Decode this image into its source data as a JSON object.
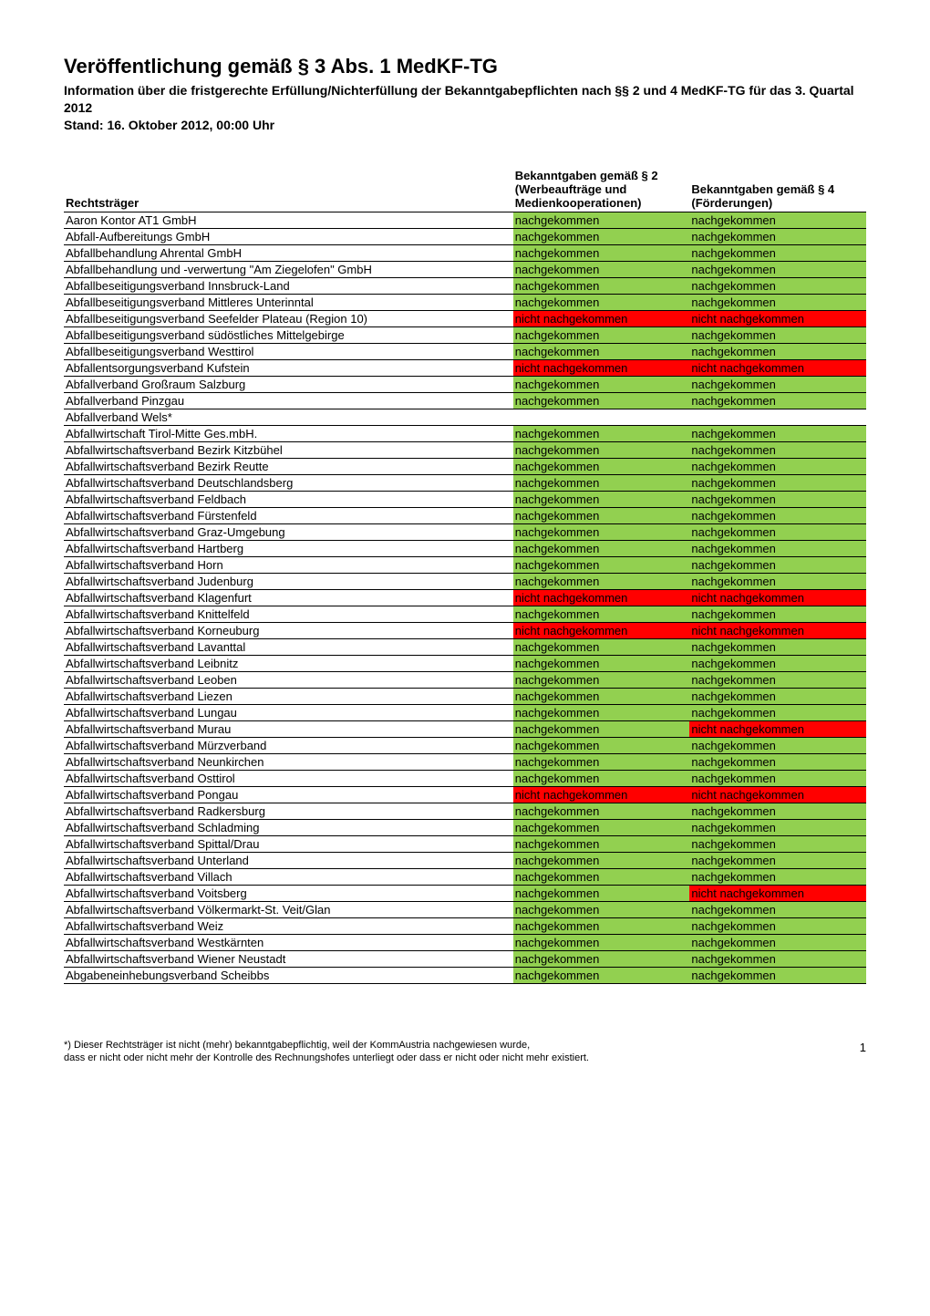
{
  "header": {
    "title": "Veröffentlichung gemäß § 3 Abs. 1 MedKF-TG",
    "subtitle_line1": "Information über die fristgerechte Erfüllung/Nichterfüllung der Bekanntgabepflichten nach §§ 2 und 4 MedKF-TG für das 3. Quartal 2012",
    "subtitle_line2": "Stand: 16. Oktober 2012, 00:00 Uhr"
  },
  "table": {
    "header_row1_col2": "Bekanntgaben gemäß § 2 (Werbeaufträge und Medienkooperationen)",
    "header_row1_col3": "Bekanntgaben gemäß § 4 (Förderungen)",
    "header_col1": "Rechtsträger",
    "status_text": {
      "ok": "nachgekommen",
      "not": "nicht nachgekommen",
      "blank": ""
    },
    "colors": {
      "ok": "#92d050",
      "not": "#ff0000"
    },
    "rows": [
      {
        "name": "Aaron Kontor AT1 GmbH",
        "s2": "ok",
        "s4": "ok"
      },
      {
        "name": "Abfall-Aufbereitungs GmbH",
        "s2": "ok",
        "s4": "ok"
      },
      {
        "name": "Abfallbehandlung Ahrental GmbH",
        "s2": "ok",
        "s4": "ok"
      },
      {
        "name": "Abfallbehandlung und -verwertung \"Am Ziegelofen\" GmbH",
        "s2": "ok",
        "s4": "ok"
      },
      {
        "name": "Abfallbeseitigungsverband Innsbruck-Land",
        "s2": "ok",
        "s4": "ok"
      },
      {
        "name": "Abfallbeseitigungsverband Mittleres Unterinntal",
        "s2": "ok",
        "s4": "ok"
      },
      {
        "name": "Abfallbeseitigungsverband Seefelder Plateau (Region 10)",
        "s2": "not",
        "s4": "not"
      },
      {
        "name": "Abfallbeseitigungsverband südöstliches Mittelgebirge",
        "s2": "ok",
        "s4": "ok"
      },
      {
        "name": "Abfallbeseitigungsverband Westtirol",
        "s2": "ok",
        "s4": "ok"
      },
      {
        "name": "Abfallentsorgungsverband Kufstein",
        "s2": "not",
        "s4": "not"
      },
      {
        "name": "Abfallverband Großraum Salzburg",
        "s2": "ok",
        "s4": "ok"
      },
      {
        "name": "Abfallverband Pinzgau",
        "s2": "ok",
        "s4": "ok"
      },
      {
        "name": "Abfallverband Wels*",
        "s2": "blank",
        "s4": "blank"
      },
      {
        "name": "Abfallwirtschaft Tirol-Mitte Ges.mbH.",
        "s2": "ok",
        "s4": "ok"
      },
      {
        "name": "Abfallwirtschaftsverband Bezirk Kitzbühel",
        "s2": "ok",
        "s4": "ok"
      },
      {
        "name": "Abfallwirtschaftsverband Bezirk Reutte",
        "s2": "ok",
        "s4": "ok"
      },
      {
        "name": "Abfallwirtschaftsverband Deutschlandsberg",
        "s2": "ok",
        "s4": "ok"
      },
      {
        "name": "Abfallwirtschaftsverband Feldbach",
        "s2": "ok",
        "s4": "ok"
      },
      {
        "name": "Abfallwirtschaftsverband Fürstenfeld",
        "s2": "ok",
        "s4": "ok"
      },
      {
        "name": "Abfallwirtschaftsverband Graz-Umgebung",
        "s2": "ok",
        "s4": "ok"
      },
      {
        "name": "Abfallwirtschaftsverband Hartberg",
        "s2": "ok",
        "s4": "ok"
      },
      {
        "name": "Abfallwirtschaftsverband Horn",
        "s2": "ok",
        "s4": "ok"
      },
      {
        "name": "Abfallwirtschaftsverband Judenburg",
        "s2": "ok",
        "s4": "ok"
      },
      {
        "name": "Abfallwirtschaftsverband Klagenfurt",
        "s2": "not",
        "s4": "not"
      },
      {
        "name": "Abfallwirtschaftsverband Knittelfeld",
        "s2": "ok",
        "s4": "ok"
      },
      {
        "name": "Abfallwirtschaftsverband Korneuburg",
        "s2": "not",
        "s4": "not"
      },
      {
        "name": "Abfallwirtschaftsverband Lavanttal",
        "s2": "ok",
        "s4": "ok"
      },
      {
        "name": "Abfallwirtschaftsverband Leibnitz",
        "s2": "ok",
        "s4": "ok"
      },
      {
        "name": "Abfallwirtschaftsverband Leoben",
        "s2": "ok",
        "s4": "ok"
      },
      {
        "name": "Abfallwirtschaftsverband Liezen",
        "s2": "ok",
        "s4": "ok"
      },
      {
        "name": "Abfallwirtschaftsverband Lungau",
        "s2": "ok",
        "s4": "ok"
      },
      {
        "name": "Abfallwirtschaftsverband Murau",
        "s2": "ok",
        "s4": "not"
      },
      {
        "name": "Abfallwirtschaftsverband Mürzverband",
        "s2": "ok",
        "s4": "ok"
      },
      {
        "name": "Abfallwirtschaftsverband Neunkirchen",
        "s2": "ok",
        "s4": "ok"
      },
      {
        "name": "Abfallwirtschaftsverband Osttirol",
        "s2": "ok",
        "s4": "ok"
      },
      {
        "name": "Abfallwirtschaftsverband Pongau",
        "s2": "not",
        "s4": "not"
      },
      {
        "name": "Abfallwirtschaftsverband Radkersburg",
        "s2": "ok",
        "s4": "ok"
      },
      {
        "name": "Abfallwirtschaftsverband Schladming",
        "s2": "ok",
        "s4": "ok"
      },
      {
        "name": "Abfallwirtschaftsverband Spittal/Drau",
        "s2": "ok",
        "s4": "ok"
      },
      {
        "name": "Abfallwirtschaftsverband Unterland",
        "s2": "ok",
        "s4": "ok"
      },
      {
        "name": "Abfallwirtschaftsverband Villach",
        "s2": "ok",
        "s4": "ok"
      },
      {
        "name": "Abfallwirtschaftsverband Voitsberg",
        "s2": "ok",
        "s4": "not"
      },
      {
        "name": "Abfallwirtschaftsverband Völkermarkt-St. Veit/Glan",
        "s2": "ok",
        "s4": "ok"
      },
      {
        "name": "Abfallwirtschaftsverband Weiz",
        "s2": "ok",
        "s4": "ok"
      },
      {
        "name": "Abfallwirtschaftsverband Westkärnten",
        "s2": "ok",
        "s4": "ok"
      },
      {
        "name": "Abfallwirtschaftsverband Wiener Neustadt",
        "s2": "ok",
        "s4": "ok"
      },
      {
        "name": "Abgabeneinhebungsverband Scheibbs",
        "s2": "ok",
        "s4": "ok"
      }
    ]
  },
  "footnote": {
    "line1": "*) Dieser Rechtsträger ist nicht (mehr) bekanntgabepflichtig, weil der KommAustria nachgewiesen wurde,",
    "line2": "dass er nicht oder nicht mehr der Kontrolle des Rechnungshofes unterliegt oder dass er nicht oder nicht mehr existiert."
  },
  "page_number": "1"
}
